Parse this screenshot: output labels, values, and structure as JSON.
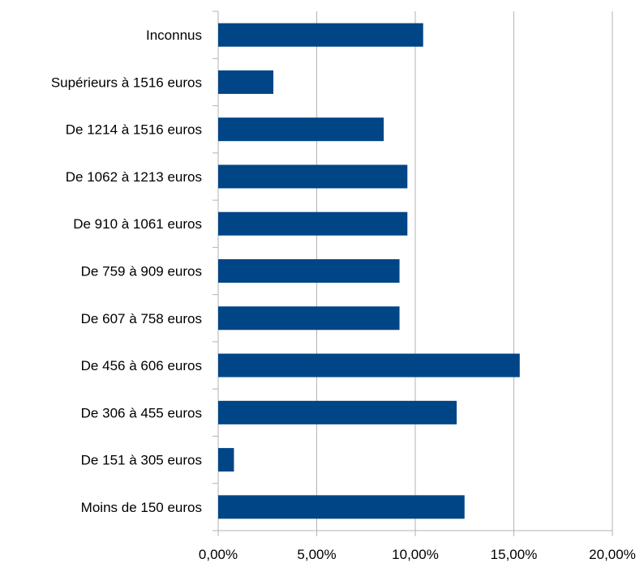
{
  "chart_data": {
    "type": "bar",
    "orientation": "horizontal",
    "categories": [
      "Inconnus",
      "Supérieurs à 1516 euros",
      "De 1214 à 1516 euros",
      "De 1062 à 1213 euros",
      "De 910 à 1061 euros",
      "De 759 à 909 euros",
      "De 607 à 758 euros",
      "De 456 à 606 euros",
      "De 306 à 455 euros",
      "De 151 à 305 euros",
      "Moins de 150 euros"
    ],
    "values": [
      10.4,
      2.8,
      8.4,
      9.6,
      9.6,
      9.2,
      9.2,
      15.3,
      12.1,
      0.8,
      12.5
    ],
    "xlim": [
      0,
      20
    ],
    "ticks": [
      0,
      5,
      10,
      15,
      20
    ],
    "tick_labels": [
      "0,00%",
      "5,00%",
      "10,00%",
      "15,00%",
      "20,00%"
    ],
    "bar_color": "#004586",
    "grid": "vertical",
    "title": "",
    "xlabel": "",
    "ylabel": ""
  }
}
